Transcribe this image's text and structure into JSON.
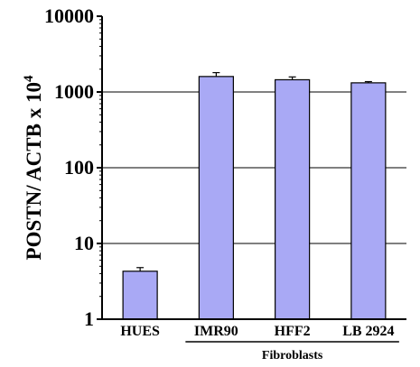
{
  "chart_data": {
    "type": "bar",
    "yscale": "log",
    "ylabel": "POSTN/ ACTB x 10",
    "ylabel_exponent": "4",
    "ylim": [
      1,
      10000
    ],
    "yticks": [
      "1",
      "10",
      "100",
      "1000",
      "10000"
    ],
    "grid": "horizontal",
    "categories": [
      "HUES",
      "IMR90",
      "HFF2",
      "LB 2924"
    ],
    "values": [
      4.3,
      1600,
      1450,
      1320
    ],
    "errors": [
      0.5,
      200,
      130,
      50
    ],
    "group_label": "Fibroblasts",
    "bar_color": "#a9a9f5",
    "bar_edge_color": "#000000"
  }
}
